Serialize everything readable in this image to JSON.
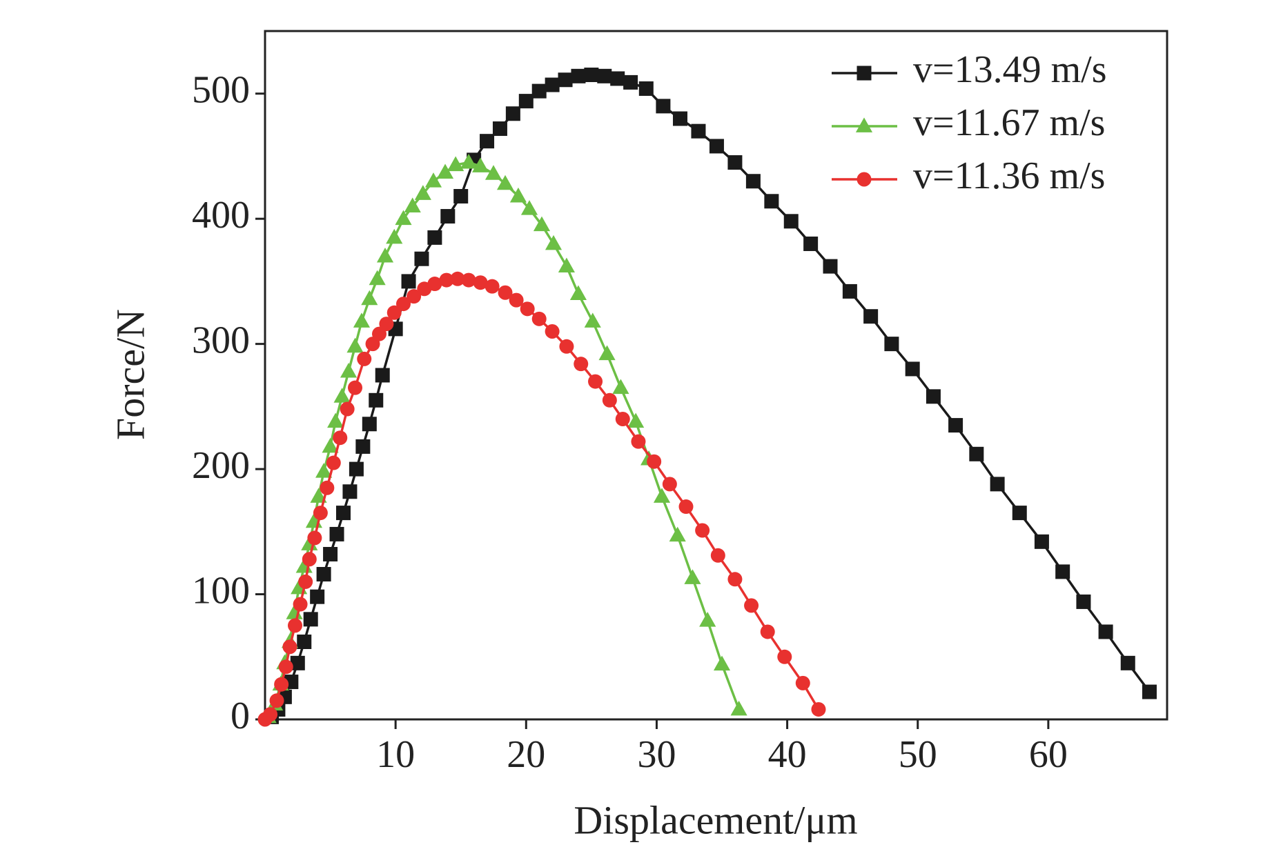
{
  "chart_data": {
    "type": "line",
    "x_label": "Displacement/μm",
    "y_label": "Force/N",
    "xlim": [
      0,
      69.1
    ],
    "ylim": [
      0,
      550
    ],
    "xticks": [
      10,
      20,
      30,
      40,
      50,
      60
    ],
    "yticks": [
      0,
      100,
      200,
      300,
      400,
      500
    ],
    "legend": "upper right",
    "series": [
      {
        "name": "v=13.49 m/s",
        "color": "#1a1a1a",
        "marker": "square",
        "x": [
          0.5,
          1,
          1.5,
          2,
          2.5,
          3,
          3.5,
          4,
          4.5,
          5,
          5.5,
          6,
          6.5,
          7,
          7.5,
          8,
          8.5,
          9,
          10,
          11,
          12,
          13,
          14,
          15,
          16,
          17,
          18,
          19,
          20,
          21,
          22,
          23,
          24,
          25,
          26,
          27,
          28,
          29.2,
          30.5,
          31.8,
          33.2,
          34.6,
          36,
          37.4,
          38.8,
          40.3,
          41.8,
          43.3,
          44.8,
          46.4,
          48,
          49.6,
          51.2,
          52.9,
          54.5,
          56.1,
          57.8,
          59.5,
          61.1,
          62.7,
          64.4,
          66.1,
          67.75
        ],
        "values": [
          2,
          8,
          18,
          30,
          45,
          62,
          80,
          98,
          116,
          132,
          148,
          165,
          182,
          200,
          218,
          236,
          255,
          275,
          312,
          350,
          368,
          385,
          402,
          418,
          447,
          462,
          472,
          484,
          494,
          502,
          507,
          511,
          514,
          515,
          514,
          512,
          509,
          504,
          490,
          480,
          470,
          458,
          445,
          430,
          414,
          398,
          380,
          362,
          342,
          322,
          300,
          280,
          258,
          235,
          212,
          188,
          165,
          142,
          118,
          94,
          70,
          45,
          22
        ]
      },
      {
        "name": "v=11.67 m/s",
        "color": "#6cbf45",
        "marker": "triangle",
        "x": [
          0.25,
          0.75,
          1.2,
          1.5,
          1.9,
          2.25,
          2.6,
          3,
          3.4,
          3.75,
          4.1,
          4.5,
          5,
          5.4,
          5.9,
          6.4,
          6.9,
          7.4,
          8,
          8.6,
          9.2,
          9.9,
          10.6,
          11.3,
          12.1,
          12.9,
          13.8,
          14.6,
          15.6,
          16.5,
          17.5,
          18.4,
          19.4,
          20.25,
          21.2,
          22.1,
          23.1,
          24,
          25.1,
          26.2,
          27.25,
          28.4,
          29.4,
          30.4,
          31.6,
          32.75,
          33.9,
          35,
          36.3
        ],
        "values": [
          2,
          12,
          28,
          45,
          62,
          85,
          105,
          122,
          140,
          158,
          178,
          198,
          218,
          238,
          258,
          278,
          298,
          318,
          336,
          352,
          370,
          385,
          400,
          410,
          420,
          430,
          437,
          443,
          445,
          442,
          436,
          428,
          418,
          408,
          395,
          380,
          362,
          340,
          318,
          292,
          265,
          238,
          208,
          178,
          147,
          113,
          79,
          44,
          8
        ]
      },
      {
        "name": "v=11.36 m/s",
        "color": "#e8312f",
        "marker": "circle",
        "x": [
          0,
          0.4,
          0.9,
          1.25,
          1.6,
          1.9,
          2.3,
          2.7,
          3.1,
          3.4,
          3.8,
          4.25,
          4.75,
          5.25,
          5.75,
          6.3,
          6.9,
          7.6,
          8.25,
          8.75,
          9.3,
          9.9,
          10.6,
          11.4,
          12.2,
          13,
          13.9,
          14.75,
          15.6,
          16.5,
          17.4,
          18.4,
          19.25,
          20.1,
          21,
          22,
          23.1,
          24.2,
          25.3,
          26.4,
          27.4,
          28.6,
          29.8,
          31,
          32.25,
          33.5,
          34.7,
          36,
          37.25,
          38.5,
          39.8,
          41.2,
          42.4
        ],
        "values": [
          0,
          4,
          15,
          28,
          42,
          58,
          75,
          92,
          110,
          128,
          145,
          165,
          185,
          205,
          225,
          248,
          265,
          288,
          300,
          308,
          316,
          325,
          332,
          338,
          344,
          348,
          351,
          352,
          351,
          349,
          346,
          341,
          335,
          328,
          320,
          310,
          298,
          284,
          270,
          255,
          240,
          222,
          206,
          188,
          170,
          151,
          131,
          112,
          91,
          70,
          50,
          29,
          8
        ]
      }
    ]
  }
}
